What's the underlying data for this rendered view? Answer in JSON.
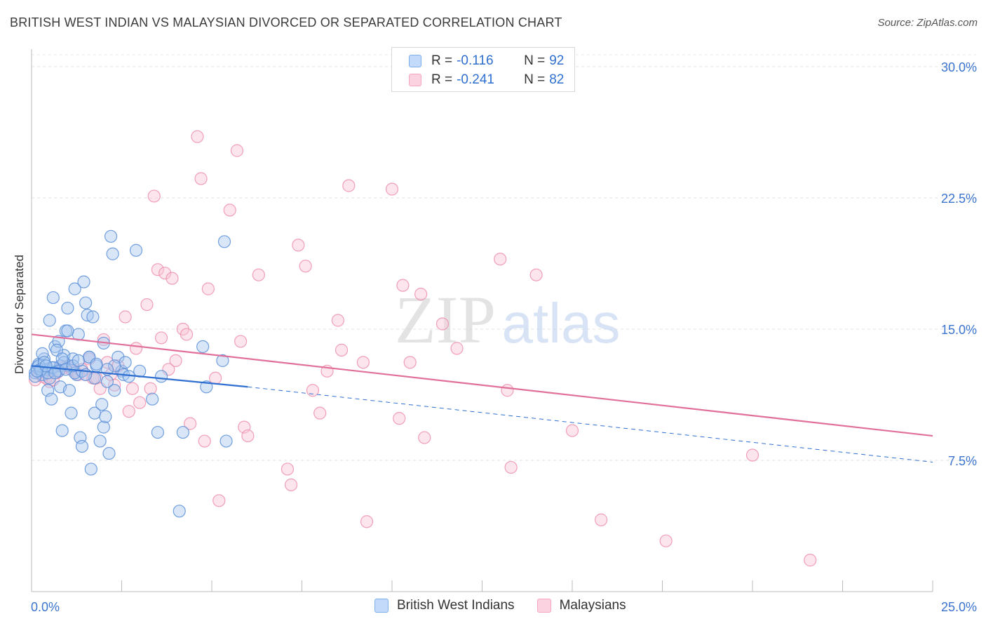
{
  "title": "BRITISH WEST INDIAN VS MALAYSIAN DIVORCED OR SEPARATED CORRELATION CHART",
  "source": "Source: ZipAtlas.com",
  "watermark": {
    "zip": "ZIP",
    "atlas": "atlas"
  },
  "legend": {
    "r_label": "R =",
    "n_label": "N =",
    "rows": [
      {
        "r": "-0.116",
        "n": "92",
        "color": "#7eaee8"
      },
      {
        "r": "-0.241",
        "n": "82",
        "color": "#f4a6bf"
      }
    ]
  },
  "bottom_legend": [
    {
      "label": "British West Indians",
      "color": "#7eaee8"
    },
    {
      "label": "Malaysians",
      "color": "#f4a6bf"
    }
  ],
  "chart_data": {
    "type": "scatter",
    "title": "BRITISH WEST INDIAN VS MALAYSIAN DIVORCED OR SEPARATED CORRELATION CHART",
    "xlabel": "",
    "ylabel": "Divorced or Separated",
    "xlim": [
      0,
      25
    ],
    "ylim": [
      0,
      31
    ],
    "x_tick_labels": [
      "0.0%",
      "25.0%"
    ],
    "y_ticks": [
      7.5,
      15.0,
      22.5,
      30.0
    ],
    "y_tick_labels": [
      "7.5%",
      "15.0%",
      "22.5%",
      "30.0%"
    ],
    "grid": true,
    "series": [
      {
        "name": "British West Indians",
        "color": "#5b8fd8",
        "fill": "#a9c8f0",
        "line_color": "#2f6fd0",
        "trend": {
          "x0": 0,
          "y0": 12.9,
          "x1": 6.0,
          "y1": 11.7,
          "dash_to_x": 25,
          "dash_to_y": 7.4
        },
        "points": [
          [
            0.1,
            12.5
          ],
          [
            0.15,
            12.8
          ],
          [
            0.2,
            13.0
          ],
          [
            0.25,
            12.6
          ],
          [
            0.3,
            12.4
          ],
          [
            0.35,
            13.3
          ],
          [
            0.4,
            12.7
          ],
          [
            0.45,
            11.5
          ],
          [
            0.5,
            15.5
          ],
          [
            0.55,
            12.8
          ],
          [
            0.6,
            16.8
          ],
          [
            0.65,
            14.0
          ],
          [
            0.7,
            12.6
          ],
          [
            0.75,
            14.3
          ],
          [
            0.8,
            11.7
          ],
          [
            0.85,
            9.2
          ],
          [
            0.9,
            13.5
          ],
          [
            0.95,
            14.9
          ],
          [
            1.0,
            16.2
          ],
          [
            1.05,
            12.9
          ],
          [
            1.1,
            10.2
          ],
          [
            1.15,
            13.3
          ],
          [
            1.2,
            17.3
          ],
          [
            1.25,
            12.4
          ],
          [
            1.3,
            14.7
          ],
          [
            1.35,
            8.8
          ],
          [
            1.4,
            8.3
          ],
          [
            1.45,
            17.7
          ],
          [
            1.5,
            16.5
          ],
          [
            1.55,
            15.8
          ],
          [
            1.6,
            13.4
          ],
          [
            1.65,
            7.0
          ],
          [
            1.7,
            15.7
          ],
          [
            1.75,
            10.2
          ],
          [
            1.8,
            12.9
          ],
          [
            1.9,
            8.6
          ],
          [
            1.95,
            10.7
          ],
          [
            2.0,
            9.4
          ],
          [
            2.05,
            10.0
          ],
          [
            2.1,
            12.0
          ],
          [
            2.15,
            7.9
          ],
          [
            2.2,
            20.3
          ],
          [
            2.25,
            19.3
          ],
          [
            2.3,
            11.5
          ],
          [
            2.4,
            13.4
          ],
          [
            2.5,
            12.6
          ],
          [
            2.6,
            13.1
          ],
          [
            2.9,
            19.5
          ],
          [
            3.0,
            12.6
          ],
          [
            3.35,
            11.0
          ],
          [
            3.5,
            9.1
          ],
          [
            3.6,
            12.3
          ],
          [
            4.1,
            4.6
          ],
          [
            4.2,
            9.1
          ],
          [
            4.75,
            14.0
          ],
          [
            4.85,
            11.7
          ],
          [
            5.3,
            13.2
          ],
          [
            5.35,
            20.0
          ],
          [
            5.4,
            8.6
          ],
          [
            0.1,
            12.3
          ],
          [
            0.2,
            12.9
          ],
          [
            0.3,
            13.6
          ],
          [
            0.5,
            12.2
          ],
          [
            0.55,
            11.0
          ],
          [
            0.7,
            13.8
          ],
          [
            0.8,
            12.9
          ],
          [
            0.9,
            13.1
          ],
          [
            1.0,
            14.9
          ],
          [
            1.05,
            11.5
          ],
          [
            1.2,
            12.5
          ],
          [
            1.4,
            12.6
          ],
          [
            1.6,
            13.4
          ],
          [
            1.75,
            12.2
          ],
          [
            2.0,
            14.2
          ],
          [
            2.3,
            12.9
          ],
          [
            2.55,
            12.4
          ],
          [
            2.7,
            12.3
          ],
          [
            0.25,
            12.7
          ],
          [
            0.35,
            13.1
          ],
          [
            0.45,
            12.5
          ],
          [
            0.6,
            12.8
          ],
          [
            0.75,
            12.6
          ],
          [
            0.85,
            13.3
          ],
          [
            0.95,
            12.7
          ],
          [
            1.15,
            12.9
          ],
          [
            1.3,
            13.2
          ],
          [
            1.5,
            12.4
          ],
          [
            1.8,
            13.0
          ],
          [
            2.1,
            12.7
          ],
          [
            0.15,
            12.6
          ],
          [
            0.4,
            12.9
          ],
          [
            0.65,
            12.5
          ]
        ]
      },
      {
        "name": "Malaysians",
        "color": "#ee8fad",
        "fill": "#f8c5d5",
        "line_color": "#e0709a",
        "trend": {
          "x0": 0,
          "y0": 14.7,
          "x1": 25,
          "y1": 8.9
        },
        "points": [
          [
            0.1,
            12.1
          ],
          [
            0.3,
            12.3
          ],
          [
            0.5,
            12.0
          ],
          [
            0.7,
            12.5
          ],
          [
            0.9,
            12.8
          ],
          [
            1.0,
            12.9
          ],
          [
            1.2,
            12.6
          ],
          [
            1.4,
            12.7
          ],
          [
            1.5,
            12.4
          ],
          [
            1.6,
            13.3
          ],
          [
            1.7,
            12.2
          ],
          [
            1.8,
            12.2
          ],
          [
            1.9,
            11.6
          ],
          [
            2.0,
            14.4
          ],
          [
            2.1,
            13.1
          ],
          [
            2.2,
            12.4
          ],
          [
            2.3,
            11.8
          ],
          [
            2.4,
            12.9
          ],
          [
            2.6,
            15.7
          ],
          [
            2.7,
            10.3
          ],
          [
            2.8,
            11.6
          ],
          [
            2.9,
            13.9
          ],
          [
            3.0,
            10.8
          ],
          [
            3.2,
            16.4
          ],
          [
            3.3,
            11.6
          ],
          [
            3.4,
            22.6
          ],
          [
            3.5,
            18.4
          ],
          [
            3.6,
            14.5
          ],
          [
            3.7,
            18.2
          ],
          [
            3.8,
            12.7
          ],
          [
            3.9,
            17.9
          ],
          [
            4.0,
            13.2
          ],
          [
            4.2,
            15.0
          ],
          [
            4.3,
            14.7
          ],
          [
            4.4,
            9.6
          ],
          [
            4.6,
            26.0
          ],
          [
            4.7,
            23.6
          ],
          [
            4.8,
            8.6
          ],
          [
            4.9,
            17.3
          ],
          [
            5.1,
            12.2
          ],
          [
            5.2,
            5.2
          ],
          [
            5.5,
            21.8
          ],
          [
            5.7,
            25.2
          ],
          [
            5.8,
            14.3
          ],
          [
            5.9,
            9.4
          ],
          [
            6.0,
            8.9
          ],
          [
            6.3,
            18.1
          ],
          [
            7.1,
            7.0
          ],
          [
            7.2,
            6.1
          ],
          [
            7.4,
            19.8
          ],
          [
            7.6,
            18.6
          ],
          [
            7.8,
            11.5
          ],
          [
            8.0,
            10.2
          ],
          [
            8.2,
            12.6
          ],
          [
            8.5,
            15.5
          ],
          [
            8.6,
            13.8
          ],
          [
            8.8,
            23.2
          ],
          [
            9.2,
            13.1
          ],
          [
            9.3,
            4.0
          ],
          [
            10.0,
            23.0
          ],
          [
            10.2,
            9.9
          ],
          [
            10.3,
            17.5
          ],
          [
            10.5,
            13.1
          ],
          [
            10.8,
            17.0
          ],
          [
            10.9,
            8.8
          ],
          [
            11.4,
            15.3
          ],
          [
            11.8,
            13.9
          ],
          [
            13.0,
            19.0
          ],
          [
            13.2,
            11.5
          ],
          [
            13.3,
            7.1
          ],
          [
            14.0,
            18.1
          ],
          [
            15.0,
            9.2
          ],
          [
            15.8,
            4.1
          ],
          [
            17.6,
            2.9
          ],
          [
            20.0,
            7.8
          ],
          [
            21.6,
            1.8
          ],
          [
            0.2,
            12.5
          ],
          [
            0.4,
            12.2
          ],
          [
            0.6,
            12.1
          ],
          [
            0.8,
            12.9
          ],
          [
            1.1,
            12.7
          ],
          [
            1.3,
            12.4
          ]
        ]
      }
    ]
  }
}
